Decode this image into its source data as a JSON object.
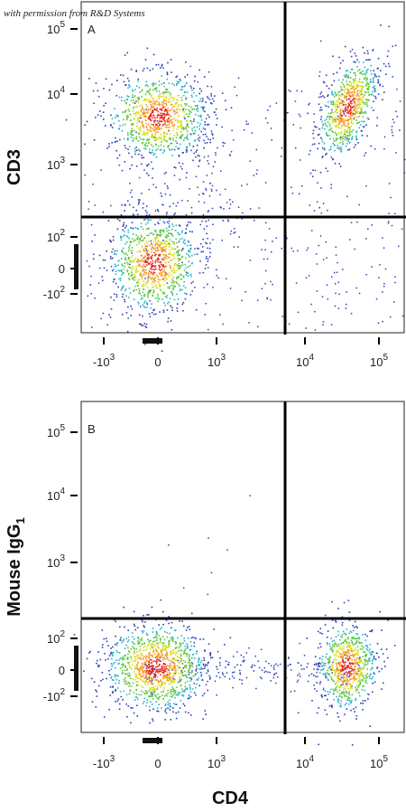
{
  "watermark": "with permission from R&D Systems",
  "x_label": "CD4",
  "panels": [
    {
      "label": "A",
      "y_label": {
        "text": "CD3"
      },
      "y_ticks": [
        {
          "base": "10",
          "sup": "5"
        },
        {
          "base": "10",
          "sup": "4"
        },
        {
          "base": "10",
          "sup": "3"
        },
        {
          "base": "10",
          "sup": "2"
        },
        {
          "base": "0"
        },
        {
          "base": "-10",
          "sup": "2"
        }
      ],
      "x_ticks": [
        {
          "base": "-10",
          "sup": "3"
        },
        {
          "base": "0"
        },
        {
          "base": "10",
          "sup": "3"
        },
        {
          "base": "10",
          "sup": "4"
        },
        {
          "base": "10",
          "sup": "5"
        }
      ]
    },
    {
      "label": "B",
      "y_label": {
        "text": "Mouse IgG",
        "sub": "1"
      },
      "y_ticks": [
        {
          "base": "10",
          "sup": "5"
        },
        {
          "base": "10",
          "sup": "4"
        },
        {
          "base": "10",
          "sup": "3"
        },
        {
          "base": "10",
          "sup": "2"
        },
        {
          "base": "0"
        },
        {
          "base": "-10",
          "sup": "2"
        }
      ],
      "x_ticks": [
        {
          "base": "-10",
          "sup": "3"
        },
        {
          "base": "0"
        },
        {
          "base": "10",
          "sup": "3"
        },
        {
          "base": "10",
          "sup": "4"
        },
        {
          "base": "10",
          "sup": "5"
        }
      ]
    }
  ]
}
